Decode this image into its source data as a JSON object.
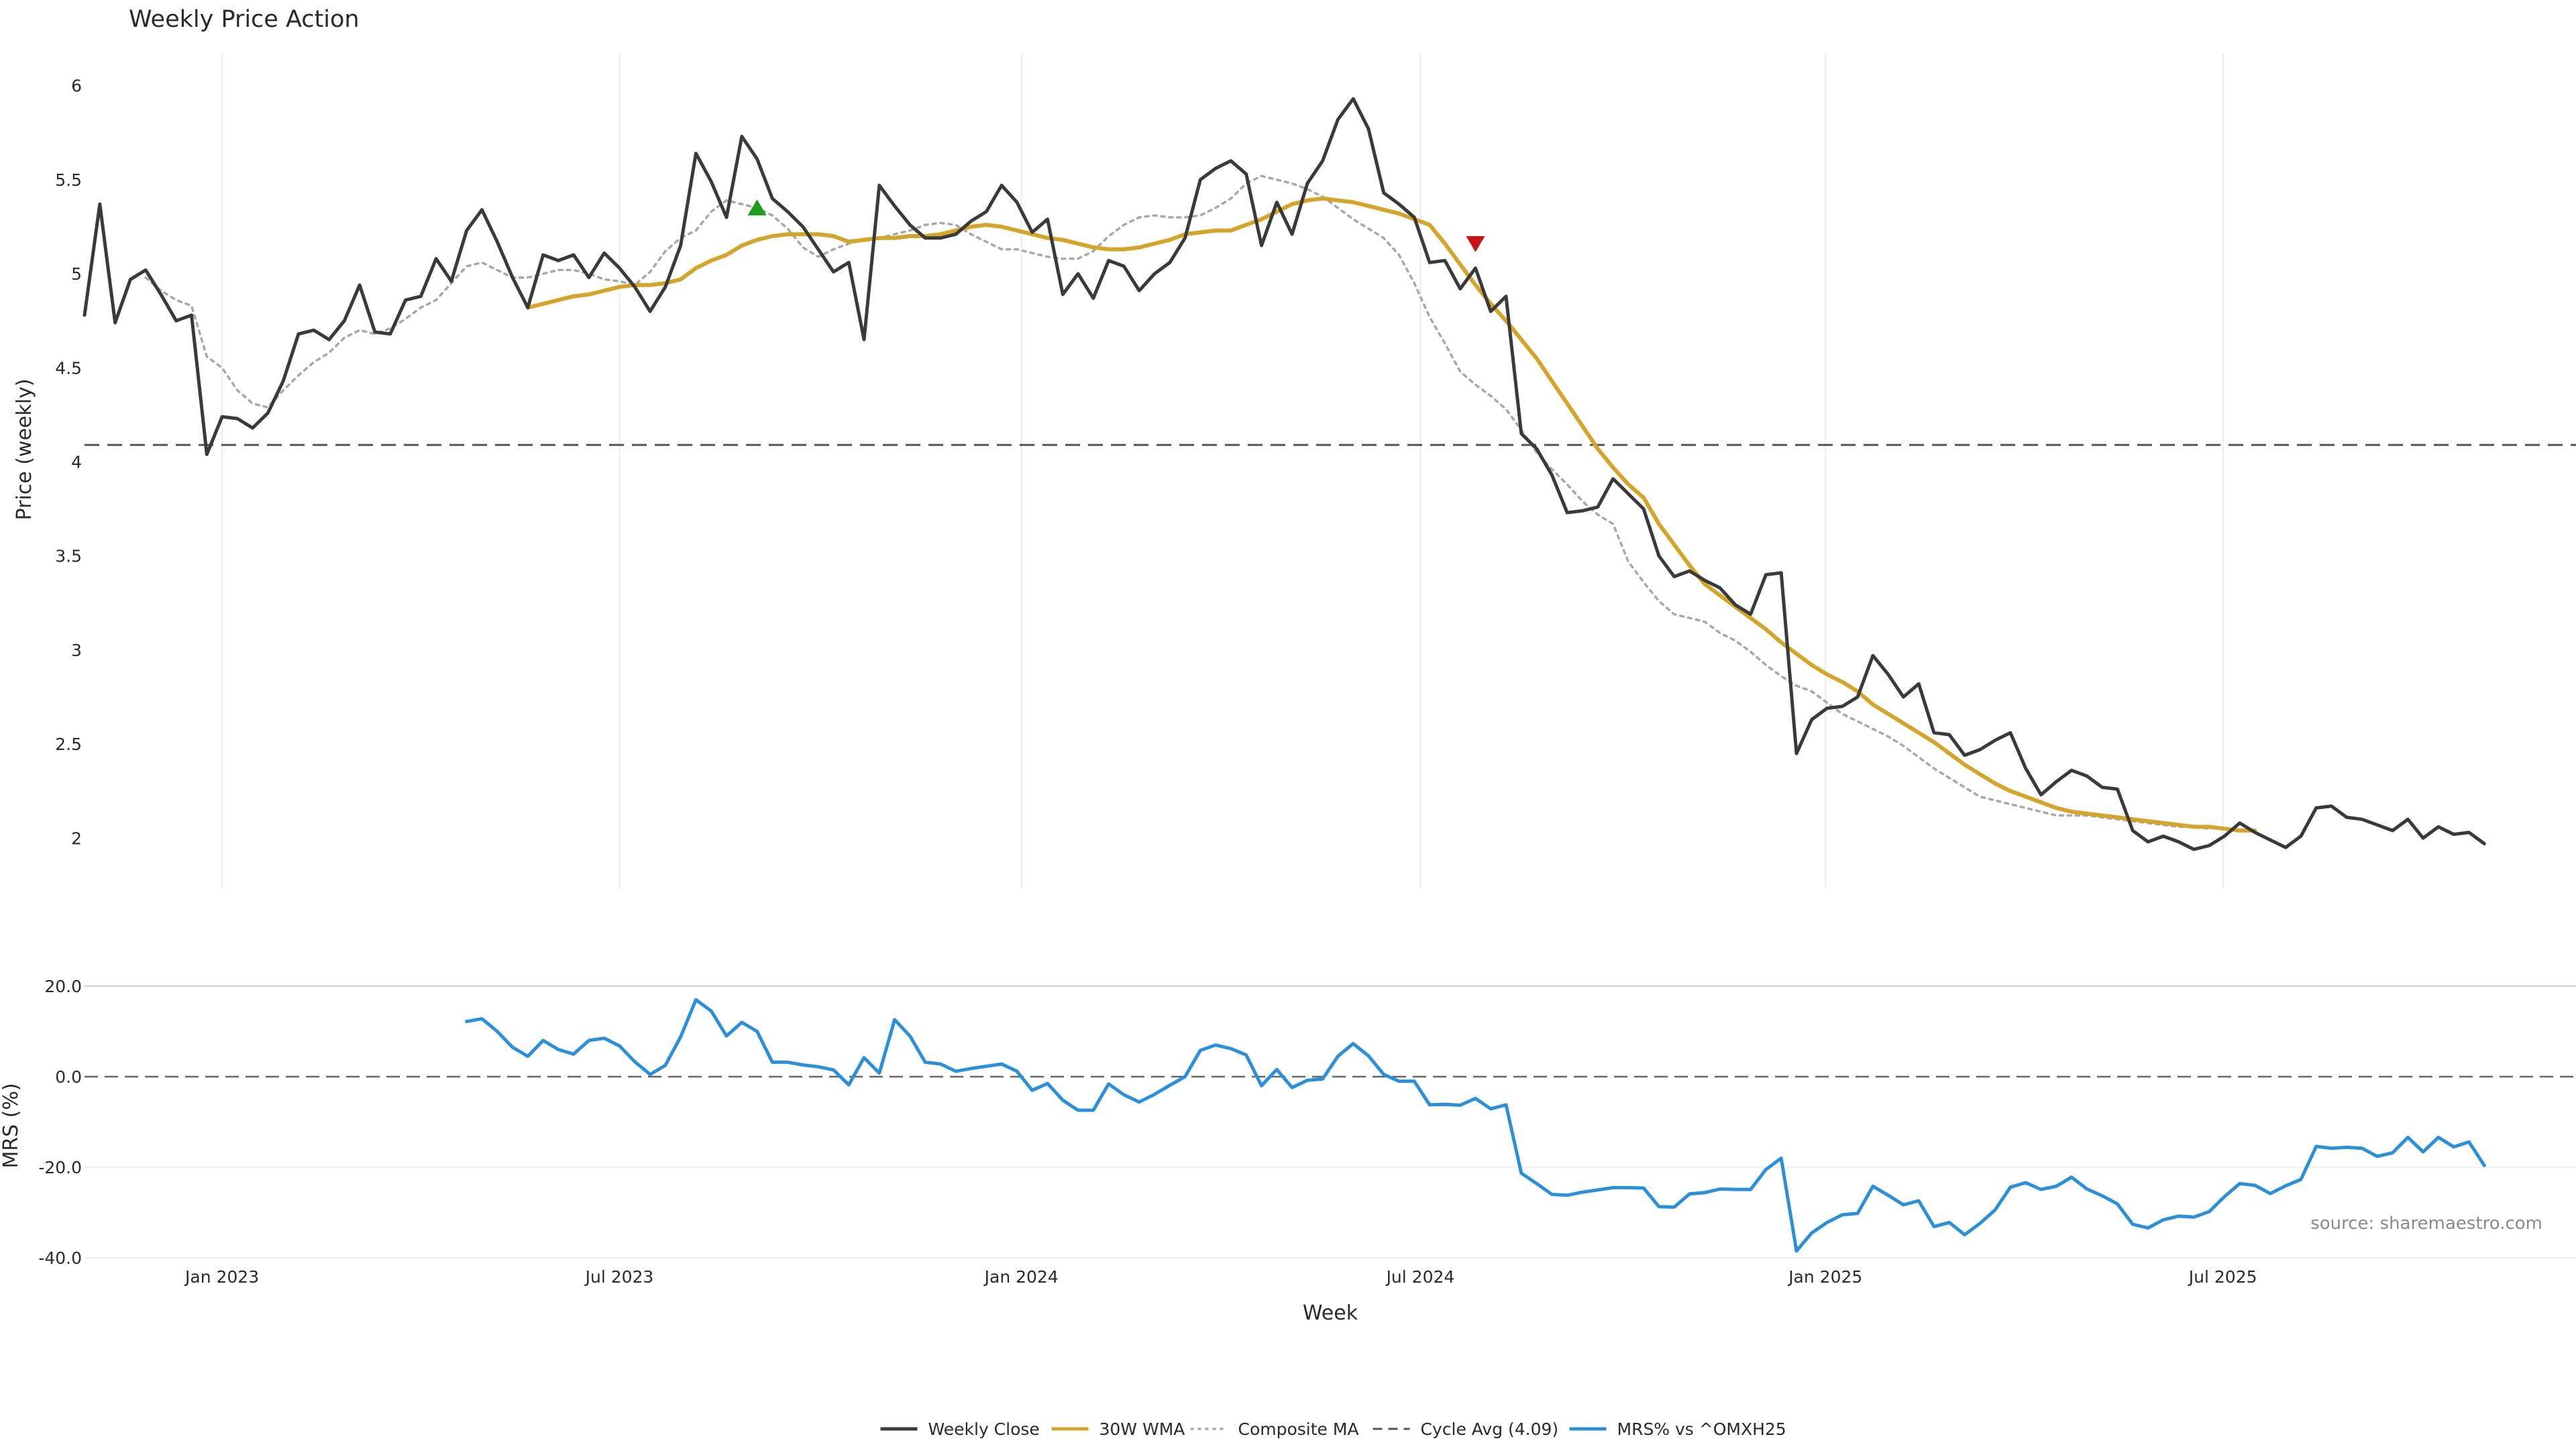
{
  "chart_data": [
    {
      "type": "line",
      "title": "Weekly Price Action",
      "xlabel": "",
      "ylabel": "Price (weekly)",
      "ylim": [
        1.73,
        6.17
      ],
      "yticks": [
        2,
        2.5,
        3,
        3.5,
        4,
        4.5,
        5,
        5.5,
        6
      ],
      "ytick_labels": [
        "2",
        "2.5",
        "3",
        "3.5",
        "4",
        "4.5",
        "5",
        "5.5",
        "6"
      ],
      "x_range_weeks": [
        0,
        163
      ],
      "x_ticks_weeks": [
        9,
        35,
        61.3,
        87.4,
        113.9,
        139.9
      ],
      "grid": true,
      "hline": {
        "name": "Cycle Avg (4.09)",
        "value": 4.09
      },
      "series": [
        {
          "name": "Weekly Close",
          "color": "#3a3a3a",
          "start_week": 0,
          "values": [
            4.78,
            5.37,
            4.74,
            4.97,
            5.02,
            4.89,
            4.75,
            4.78,
            4.04,
            4.24,
            4.23,
            4.18,
            4.26,
            4.43,
            4.68,
            4.7,
            4.65,
            4.75,
            4.94,
            4.69,
            4.68,
            4.86,
            4.88,
            5.08,
            4.96,
            5.23,
            5.34,
            5.17,
            4.98,
            4.82,
            5.1,
            5.07,
            5.1,
            4.98,
            5.11,
            5.03,
            4.93,
            4.8,
            4.93,
            5.15,
            5.64,
            5.49,
            5.3,
            5.73,
            5.61,
            5.4,
            5.33,
            5.25,
            5.13,
            5.01,
            5.06,
            4.65,
            5.47,
            5.36,
            5.26,
            5.19,
            5.19,
            5.21,
            5.28,
            5.33,
            5.47,
            5.38,
            5.22,
            5.29,
            4.89,
            5.0,
            4.87,
            5.07,
            5.04,
            4.91,
            5.0,
            5.06,
            5.19,
            5.5,
            5.56,
            5.6,
            5.53,
            5.15,
            5.38,
            5.21,
            5.48,
            5.6,
            5.82,
            5.93,
            5.77,
            5.43,
            5.37,
            5.3,
            5.06,
            5.07,
            4.92,
            5.03,
            4.8,
            4.88,
            4.15,
            4.07,
            3.93,
            3.73,
            3.74,
            3.76,
            3.91,
            3.83,
            3.75,
            3.5,
            3.39,
            3.42,
            3.37,
            3.33,
            3.24,
            3.19,
            3.4,
            3.41,
            2.45,
            2.63,
            2.69,
            2.7,
            2.75,
            2.97,
            2.87,
            2.75,
            2.82,
            2.56,
            2.55,
            2.44,
            2.47,
            2.52,
            2.56,
            2.37,
            2.23,
            2.3,
            2.36,
            2.33,
            2.27,
            2.26,
            2.04,
            1.98,
            2.01,
            1.98,
            1.94,
            1.96,
            2.01,
            2.08,
            2.03,
            1.99,
            1.95,
            2.01,
            2.16,
            2.17,
            2.11,
            2.1,
            2.07,
            2.04,
            2.1,
            2.0,
            2.06,
            2.02,
            2.03,
            1.97
          ]
        },
        {
          "name": "30W WMA",
          "color": "#d4a52a",
          "start_week": 29,
          "values": [
            4.82,
            4.84,
            4.86,
            4.88,
            4.89,
            4.91,
            4.93,
            4.94,
            4.94,
            4.95,
            4.97,
            5.03,
            5.07,
            5.1,
            5.15,
            5.18,
            5.2,
            5.21,
            5.21,
            5.21,
            5.2,
            5.17,
            5.18,
            5.19,
            5.19,
            5.2,
            5.2,
            5.21,
            5.23,
            5.25,
            5.26,
            5.25,
            5.23,
            5.21,
            5.19,
            5.18,
            5.16,
            5.14,
            5.13,
            5.13,
            5.14,
            5.16,
            5.18,
            5.21,
            5.22,
            5.23,
            5.23,
            5.26,
            5.29,
            5.33,
            5.37,
            5.39,
            5.4,
            5.39,
            5.38,
            5.36,
            5.34,
            5.32,
            5.29,
            5.26,
            5.16,
            5.05,
            4.94,
            4.84,
            4.75,
            4.65,
            4.55,
            4.43,
            4.31,
            4.19,
            4.07,
            3.97,
            3.88,
            3.81,
            3.67,
            3.56,
            3.45,
            3.35,
            3.29,
            3.23,
            3.17,
            3.11,
            3.04,
            2.98,
            2.92,
            2.87,
            2.83,
            2.78,
            2.71,
            2.66,
            2.61,
            2.56,
            2.51,
            2.45,
            2.39,
            2.34,
            2.29,
            2.25,
            2.22,
            2.19,
            2.16,
            2.14,
            2.13,
            2.12,
            2.11,
            2.1,
            2.09,
            2.08,
            2.07,
            2.06,
            2.06,
            2.05,
            2.04,
            2.04
          ]
        },
        {
          "name": "Composite MA",
          "color": "#a8a8a8",
          "start_week": 4,
          "values": [
            4.98,
            4.91,
            4.86,
            4.83,
            4.56,
            4.5,
            4.38,
            4.31,
            4.29,
            4.38,
            4.46,
            4.53,
            4.58,
            4.66,
            4.7,
            4.68,
            4.71,
            4.76,
            4.82,
            4.86,
            4.95,
            5.04,
            5.06,
            5.02,
            4.98,
            4.98,
            5.0,
            5.02,
            5.02,
            5.0,
            4.97,
            4.96,
            4.94,
            5.01,
            5.12,
            5.19,
            5.23,
            5.33,
            5.39,
            5.37,
            5.35,
            5.31,
            5.24,
            5.14,
            5.09,
            5.13,
            5.16,
            5.18,
            5.19,
            5.21,
            5.23,
            5.26,
            5.27,
            5.26,
            5.21,
            5.17,
            5.13,
            5.13,
            5.11,
            5.09,
            5.08,
            5.08,
            5.12,
            5.2,
            5.26,
            5.3,
            5.31,
            5.3,
            5.3,
            5.31,
            5.35,
            5.4,
            5.48,
            5.52,
            5.5,
            5.48,
            5.45,
            5.41,
            5.35,
            5.29,
            5.24,
            5.19,
            5.1,
            4.95,
            4.77,
            4.63,
            4.48,
            4.41,
            4.35,
            4.28,
            4.17,
            4.05,
            3.96,
            3.88,
            3.79,
            3.72,
            3.67,
            3.47,
            3.36,
            3.26,
            3.19,
            3.17,
            3.15,
            3.09,
            3.05,
            2.99,
            2.92,
            2.86,
            2.81,
            2.78,
            2.72,
            2.66,
            2.62,
            2.58,
            2.54,
            2.49,
            2.43,
            2.37,
            2.32,
            2.27,
            2.22,
            2.2,
            2.18,
            2.16,
            2.14,
            2.12,
            2.12,
            2.12,
            2.11,
            2.1,
            2.09,
            2.08,
            2.07,
            2.06,
            2.06,
            2.05
          ]
        }
      ],
      "markers": [
        {
          "name": "buy-signal",
          "week": 44,
          "value": 5.35,
          "color": "#1a9e1a",
          "direction": "up"
        },
        {
          "name": "sell-signal",
          "week": 91,
          "value": 5.16,
          "color": "#c81414",
          "direction": "down"
        }
      ],
      "annotations": [
        "source: sharemaestro.com"
      ]
    },
    {
      "type": "line",
      "title": "",
      "xlabel": "Week",
      "ylabel": "MRS (%)",
      "ylim": [
        -40,
        20
      ],
      "yticks": [
        20,
        0,
        -20,
        -40
      ],
      "ytick_labels": [
        "20.0",
        "0.0",
        "-20.0",
        "-40.0"
      ],
      "x_range_weeks": [
        0,
        163
      ],
      "hline": {
        "name": "zero",
        "value": 0
      },
      "series": [
        {
          "name": "MRS% vs ^OMXH25",
          "color": "#2b8fd9",
          "start_week": 25,
          "values": [
            12.2,
            12.8,
            10.0,
            6.5,
            4.5,
            8.0,
            6.0,
            5.0,
            8.0,
            8.5,
            6.8,
            3.3,
            0.5,
            2.5,
            8.8,
            17.0,
            14.5,
            9.0,
            12.0,
            10.0,
            3.2,
            3.2,
            2.6,
            2.2,
            1.5,
            -1.8,
            4.2,
            0.8,
            12.6,
            9.0,
            3.2,
            2.8,
            1.2,
            1.8,
            2.3,
            2.8,
            1.2,
            -3.0,
            -1.5,
            -5.2,
            -7.4,
            -7.4,
            -1.6,
            -4.0,
            -5.6,
            -3.9,
            -1.9,
            0.0,
            5.8,
            7.0,
            6.2,
            4.8,
            -2.0,
            1.6,
            -2.4,
            -0.8,
            -0.5,
            4.5,
            7.3,
            4.6,
            0.5,
            -1.0,
            -1.0,
            -6.2,
            -6.1,
            -6.3,
            -4.8,
            -7.1,
            -6.2,
            -21.3,
            -23.6,
            -26.0,
            -26.2,
            -25.5,
            -25.0,
            -24.5,
            -24.5,
            -24.6,
            -28.7,
            -28.8,
            -25.9,
            -25.6,
            -24.8,
            -24.9,
            -24.9,
            -20.5,
            -18.0,
            -38.5,
            -34.5,
            -32.2,
            -30.5,
            -30.2,
            -24.2,
            -26.2,
            -28.3,
            -27.4,
            -33.1,
            -32.2,
            -34.9,
            -32.4,
            -29.4,
            -24.4,
            -23.4,
            -24.9,
            -24.2,
            -22.2,
            -24.8,
            -26.3,
            -28.1,
            -32.6,
            -33.4,
            -31.6,
            -30.8,
            -31.0,
            -29.8,
            -26.5,
            -23.6,
            -24.0,
            -25.8,
            -24.1,
            -22.7,
            -15.4,
            -15.8,
            -15.6,
            -15.8,
            -17.6,
            -16.8,
            -13.4,
            -16.6,
            -13.4,
            -15.5,
            -14.4,
            -19.6
          ]
        }
      ],
      "annotations": [
        "source: sharemaestro.com"
      ]
    }
  ],
  "x_axis": {
    "label": "Week",
    "tick_labels": [
      "Jan 2023",
      "Jul 2023",
      "Jan 2024",
      "Jul 2024",
      "Jan 2025",
      "Jul 2025"
    ]
  },
  "source": "source: sharemaestro.com",
  "legend": {
    "placement": "bottom-center",
    "entries": [
      {
        "label": "Weekly Close",
        "style": "solid",
        "color": "#3a3a3a"
      },
      {
        "label": "30W WMA",
        "style": "solid",
        "color": "#d4a52a"
      },
      {
        "label": "Composite MA",
        "style": "dotted",
        "color": "#a8a8a8"
      },
      {
        "label": "Cycle Avg (4.09)",
        "style": "dashed",
        "color": "#555555"
      },
      {
        "label": "MRS% vs ^OMXH25",
        "style": "solid",
        "color": "#2b8fd9"
      }
    ]
  }
}
